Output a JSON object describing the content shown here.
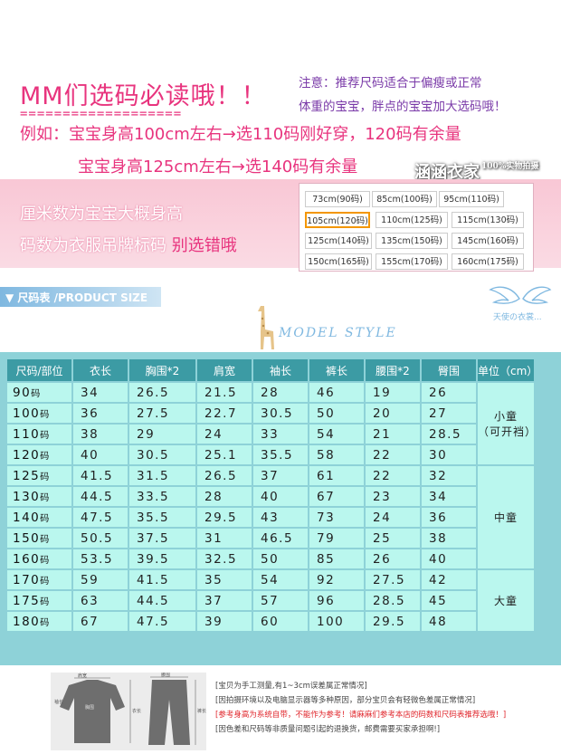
{
  "header": {
    "title": "MM们选码必读哦！！",
    "dashes": "===================",
    "notice_line1": "注意：推荐尺码适合于偏瘦或正常",
    "notice_line2": "体重的宝宝，胖点的宝宝加大选码哦！",
    "example_line1": "例如：宝宝身高100cm左右→选110码刚好穿，120码有余量",
    "example_line2": "宝宝身高125cm左右→选140码有余量",
    "brand": "涵涵衣家",
    "brand_tag": "100%实物拍摄"
  },
  "pink_band": {
    "line1": "厘米数为宝宝大概身高",
    "line2_main": "码数为衣服吊牌标码 ",
    "line2_warn": "别选错哦"
  },
  "size_codes": [
    "73cm(90码)",
    "85cm(100码)",
    "95cm(110码)",
    "105cm(120码)",
    "110cm(125码)",
    "115cm(130码)",
    "125cm(140码)",
    "135cm(150码)",
    "145cm(160码)",
    "150cm(165码)",
    "155cm(170码)",
    "160cm(175码)"
  ],
  "section": {
    "label": "▼ 尺码表 /PRODUCT SIZE",
    "angel_text": "天使の衣裳...",
    "model_style": "MODEL STYLE"
  },
  "table": {
    "headers": [
      "尺码/部位",
      "衣长",
      "胸围*2",
      "肩宽",
      "袖长",
      "裤长",
      "腰围*2",
      "臀围",
      "单位（cm）"
    ],
    "rows": [
      {
        "size": "90",
        "unit": "码",
        "vals": [
          "34",
          "26.5",
          "21.5",
          "28",
          "46",
          "19",
          "26"
        ]
      },
      {
        "size": "100",
        "unit": "码",
        "vals": [
          "36",
          "27.5",
          "22.7",
          "30.5",
          "50",
          "20",
          "27"
        ]
      },
      {
        "size": "110",
        "unit": "码",
        "vals": [
          "38",
          "29",
          "24",
          "33",
          "54",
          "21",
          "28.5"
        ]
      },
      {
        "size": "120",
        "unit": "码",
        "vals": [
          "40",
          "30.5",
          "25.1",
          "35.5",
          "58",
          "22",
          "30"
        ]
      },
      {
        "size": "125",
        "unit": "码",
        "vals": [
          "41.5",
          "31.5",
          "26.5",
          "37",
          "61",
          "22",
          "32"
        ]
      },
      {
        "size": "130",
        "unit": "码",
        "vals": [
          "44.5",
          "33.5",
          "28",
          "40",
          "67",
          "23",
          "34"
        ]
      },
      {
        "size": "140",
        "unit": "码",
        "vals": [
          "47.5",
          "35.5",
          "29.5",
          "43",
          "73",
          "24",
          "36"
        ]
      },
      {
        "size": "150",
        "unit": "码",
        "vals": [
          "50.5",
          "37.5",
          "31",
          "46.5",
          "79",
          "25",
          "38"
        ]
      },
      {
        "size": "160",
        "unit": "码",
        "vals": [
          "53.5",
          "39.5",
          "32.5",
          "50",
          "85",
          "26",
          "40"
        ]
      },
      {
        "size": "170",
        "unit": "码",
        "vals": [
          "59",
          "41.5",
          "35",
          "54",
          "92",
          "27.5",
          "42"
        ]
      },
      {
        "size": "175",
        "unit": "码",
        "vals": [
          "63",
          "44.5",
          "37",
          "57",
          "96",
          "28.5",
          "45"
        ]
      },
      {
        "size": "180",
        "unit": "码",
        "vals": [
          "67",
          "47.5",
          "39",
          "60",
          "100",
          "29.5",
          "48"
        ]
      }
    ],
    "groups": {
      "small_line1": "小童",
      "small_line2": "（可开裆）",
      "medium": "中童",
      "large": "大童"
    }
  },
  "bottom_notes": [
    "[宝贝为手工测量,有1~3cm误差属正常情况]",
    "[因拍摄环境以及电脑显示器等多种原因，部分宝贝会有轻微色差属正常情况]",
    "[参考身高为系统自带，不能作为参考！请麻麻们参考本店的码数和尺码表推荐选哦！]",
    "[因色差和尺码等非质量问题引起的退换货，邮费需要买家承担啊!]"
  ],
  "figure_labels": {
    "top": [
      "肩宽",
      "袖长",
      "衣长",
      "胸围"
    ],
    "pants": [
      "腰围",
      "裤长"
    ]
  }
}
